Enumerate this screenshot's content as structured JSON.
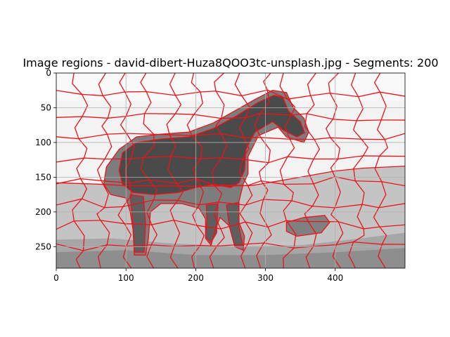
{
  "chart_data": {
    "type": "heatmap",
    "title": "Image regions - david-dibert-Huza8QOO3tc-unsplash.jpg - Segments: 200",
    "xlabel": "",
    "ylabel": "",
    "image_size": [
      500,
      281
    ],
    "xlim": [
      0,
      500
    ],
    "ylim": [
      281,
      0
    ],
    "xticks": [
      0,
      100,
      200,
      300,
      400
    ],
    "yticks": [
      0,
      50,
      100,
      150,
      200,
      250
    ],
    "x_tick_labels": [
      "0",
      "100",
      "200",
      "300",
      "400"
    ],
    "y_tick_labels": [
      "0",
      "50",
      "100",
      "150",
      "200",
      "250"
    ],
    "grid": true,
    "segments": 200,
    "boundary_color": "#e8141a",
    "colors": {
      "sky": "#f3f3f3",
      "sky_top": "#f9f9f9",
      "ground": "#c4c4c4",
      "ground_dark": "#a6a6a6",
      "ground_bottom": "#8e8e8e",
      "horse": "#4a4a4a",
      "horse_halo": "#7d7d7d",
      "legs": "#5e5e5e",
      "patch": "#808080"
    }
  }
}
